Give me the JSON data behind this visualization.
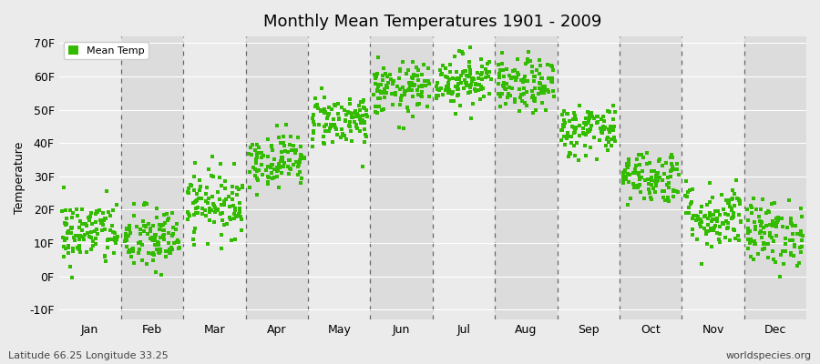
{
  "title": "Monthly Mean Temperatures 1901 - 2009",
  "ylabel": "Temperature",
  "xlabel_months": [
    "Jan",
    "Feb",
    "Mar",
    "Apr",
    "May",
    "Jun",
    "Jul",
    "Aug",
    "Sep",
    "Oct",
    "Nov",
    "Dec"
  ],
  "yticks": [
    -10,
    0,
    10,
    20,
    30,
    40,
    50,
    60,
    70
  ],
  "ytick_labels": [
    "-10F",
    "0F",
    "10F",
    "20F",
    "30F",
    "40F",
    "50F",
    "60F",
    "70F"
  ],
  "ylim": [
    -13,
    72
  ],
  "xlim": [
    0,
    12
  ],
  "dot_color": "#33bb00",
  "bg_color": "#ebebeb",
  "band_color_light": "#ebebeb",
  "band_color_dark": "#dcdcdc",
  "legend_label": "Mean Temp",
  "subtitle_left": "Latitude 66.25 Longitude 33.25",
  "subtitle_right": "worldspecies.org",
  "n_years": 109,
  "monthly_means_F": [
    13,
    11,
    22,
    35,
    47,
    56,
    59,
    57,
    44,
    30,
    18,
    13
  ],
  "monthly_stds_F": [
    5,
    5,
    5,
    4,
    4,
    4,
    4,
    4,
    4,
    4,
    5,
    5
  ],
  "seed": 42
}
